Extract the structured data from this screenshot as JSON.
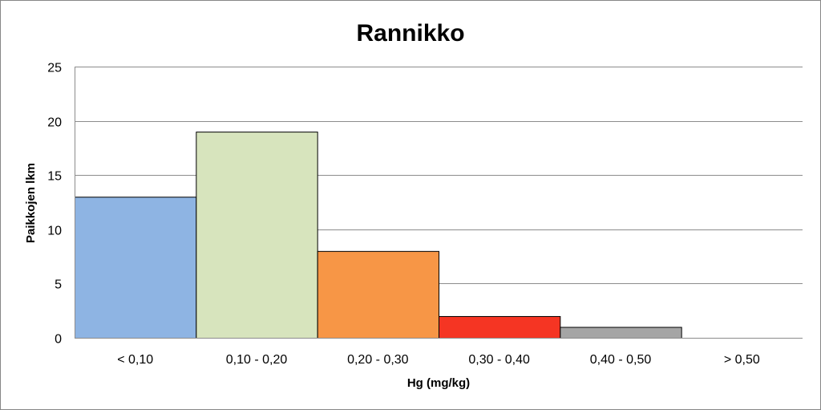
{
  "chart_data": {
    "type": "bar",
    "title": "Rannikko",
    "xlabel": "Hg (mg/kg)",
    "ylabel": "Paikkojen lkm",
    "categories": [
      "< 0,10",
      "0,10 - 0,20",
      "0,20 - 0,30",
      "0,30 - 0,40",
      "0,40 - 0,50",
      "> 0,50"
    ],
    "values": [
      13,
      19,
      8,
      2,
      1,
      0
    ],
    "colors": [
      "#8eb4e3",
      "#d7e4bd",
      "#f79646",
      "#f53523",
      "#a5a5a5",
      "#ffffff"
    ],
    "ylim": [
      0,
      25
    ],
    "yticks": [
      0,
      5,
      10,
      15,
      20,
      25
    ],
    "grid": true,
    "legend": "none"
  }
}
